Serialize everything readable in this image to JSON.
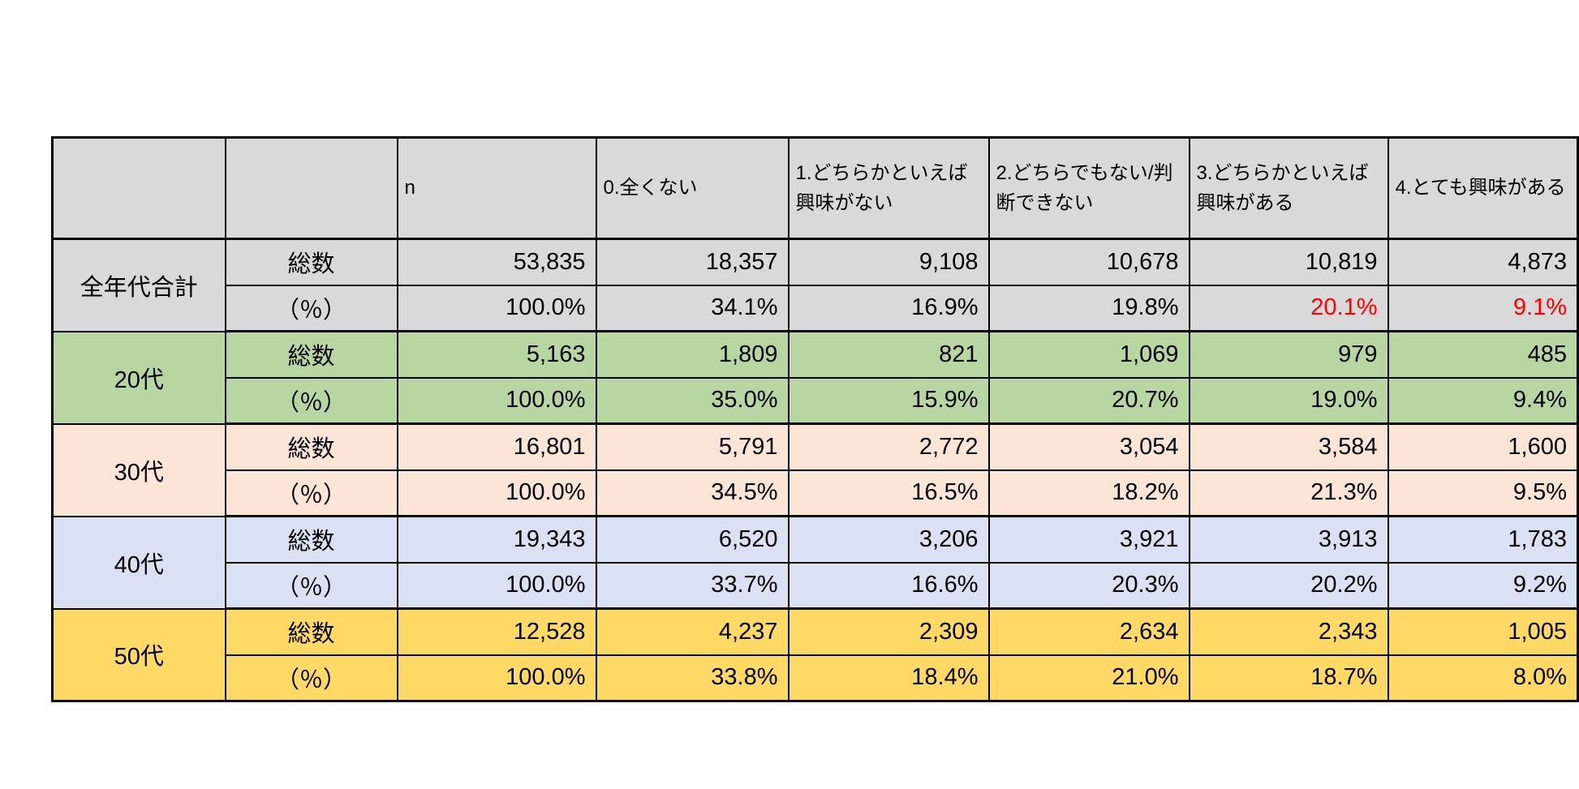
{
  "table": {
    "columns": [
      "",
      "",
      "n",
      "0.全くない",
      "1.どちらかといえば興味がない",
      "2.どちらでもない/判断できない",
      "3.どちらかといえば興味がある",
      "4.とても興味がある"
    ],
    "row_labels": {
      "total": "総数",
      "percent": "（％）"
    },
    "colors": {
      "header_bg": "#D9D9D9",
      "border": "#000000",
      "red_highlight": "#FF0000"
    },
    "groups": [
      {
        "key": "all-ages",
        "label": "全年代合計",
        "bg": "#D9D9D9",
        "total": [
          "53,835",
          "18,357",
          "9,108",
          "10,678",
          "10,819",
          "4,873"
        ],
        "percent": [
          "100.0%",
          "34.1%",
          "16.9%",
          "19.8%",
          "20.1%",
          "9.1%"
        ],
        "percent_red_indices": [
          4,
          5
        ]
      },
      {
        "key": "20s",
        "label": "20代",
        "bg": "#B8D6A2",
        "total": [
          "5,163",
          "1,809",
          "821",
          "1,069",
          "979",
          "485"
        ],
        "percent": [
          "100.0%",
          "35.0%",
          "15.9%",
          "20.7%",
          "19.0%",
          "9.4%"
        ],
        "percent_red_indices": []
      },
      {
        "key": "30s",
        "label": "30代",
        "bg": "#FCE4D6",
        "total": [
          "16,801",
          "5,791",
          "2,772",
          "3,054",
          "3,584",
          "1,600"
        ],
        "percent": [
          "100.0%",
          "34.5%",
          "16.5%",
          "18.2%",
          "21.3%",
          "9.5%"
        ],
        "percent_red_indices": []
      },
      {
        "key": "40s",
        "label": "40代",
        "bg": "#D9E1F2",
        "total": [
          "19,343",
          "6,520",
          "3,206",
          "3,921",
          "3,913",
          "1,783"
        ],
        "percent": [
          "100.0%",
          "33.7%",
          "16.6%",
          "20.3%",
          "20.2%",
          "9.2%"
        ],
        "percent_red_indices": []
      },
      {
        "key": "50s",
        "label": "50代",
        "bg": "#FFD966",
        "total": [
          "12,528",
          "4,237",
          "2,309",
          "2,634",
          "2,343",
          "1,005"
        ],
        "percent": [
          "100.0%",
          "33.8%",
          "18.4%",
          "21.0%",
          "18.7%",
          "8.0%"
        ],
        "percent_red_indices": []
      }
    ]
  },
  "chart_data": {
    "type": "table",
    "columns": [
      "",
      "",
      "n",
      "0.全くない",
      "1.どちらかといえば興味がない",
      "2.どちらでもない/判断できない",
      "3.どちらかといえば興味がある",
      "4.とても興味がある"
    ],
    "rows": [
      [
        "全年代合計",
        "総数",
        "53,835",
        "18,357",
        "9,108",
        "10,678",
        "10,819",
        "4,873"
      ],
      [
        "全年代合計",
        "（％）",
        "100.0%",
        "34.1%",
        "16.9%",
        "19.8%",
        "20.1%",
        "9.1%"
      ],
      [
        "20代",
        "総数",
        "5,163",
        "1,809",
        "821",
        "1,069",
        "979",
        "485"
      ],
      [
        "20代",
        "（％）",
        "100.0%",
        "35.0%",
        "15.9%",
        "20.7%",
        "19.0%",
        "9.4%"
      ],
      [
        "30代",
        "総数",
        "16,801",
        "5,791",
        "2,772",
        "3,054",
        "3,584",
        "1,600"
      ],
      [
        "30代",
        "（％）",
        "100.0%",
        "34.5%",
        "16.5%",
        "18.2%",
        "21.3%",
        "9.5%"
      ],
      [
        "40代",
        "総数",
        "19,343",
        "6,520",
        "3,206",
        "3,921",
        "3,913",
        "1,783"
      ],
      [
        "40代",
        "（％）",
        "100.0%",
        "33.7%",
        "16.6%",
        "20.3%",
        "20.2%",
        "9.2%"
      ],
      [
        "50代",
        "総数",
        "12,528",
        "4,237",
        "2,309",
        "2,634",
        "2,343",
        "1,005"
      ],
      [
        "50代",
        "（％）",
        "100.0%",
        "33.8%",
        "18.4%",
        "21.0%",
        "18.7%",
        "8.0%"
      ]
    ],
    "red_cells": [
      [
        "全年代合計",
        "（％）",
        "20.1%"
      ],
      [
        "全年代合計",
        "（％）",
        "9.1%"
      ]
    ]
  }
}
